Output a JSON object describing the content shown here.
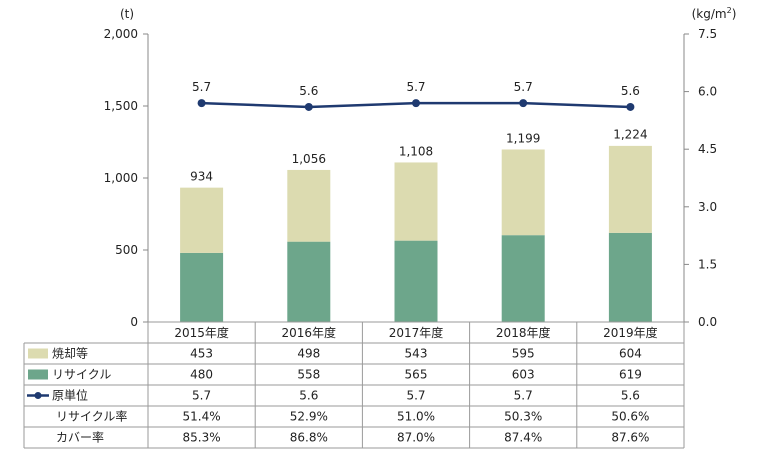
{
  "chart_data": {
    "type": "bar",
    "stacked": true,
    "left_axis": {
      "unit": "(t)",
      "range": [
        0,
        2000
      ],
      "ticks": [
        "0",
        "500",
        "1,000",
        "1,500",
        "2,000"
      ]
    },
    "right_axis": {
      "unit": "(kg/m",
      "unit_sup": "2",
      "unit_close": ")",
      "range": [
        0,
        7.5
      ],
      "ticks": [
        "0.0",
        "1.5",
        "3.0",
        "4.5",
        "6.0",
        "7.5"
      ]
    },
    "categories": [
      "2015年度",
      "2016年度",
      "2017年度",
      "2018年度",
      "2019年度"
    ],
    "totals": [
      934,
      1056,
      1108,
      1199,
      1224
    ],
    "total_labels": [
      "934",
      "1,056",
      "1,108",
      "1,199",
      "1,224"
    ],
    "series": [
      {
        "name": "焼却等",
        "values": [
          453,
          498,
          543,
          595,
          604
        ],
        "color": "#dcdbb0",
        "axis": "left"
      },
      {
        "name": "リサイクル",
        "values": [
          480,
          558,
          565,
          603,
          619
        ],
        "color": "#6da68b",
        "axis": "left"
      },
      {
        "name": "原単位",
        "values": [
          5.7,
          5.6,
          5.7,
          5.7,
          5.6
        ],
        "color": "#1f3a70",
        "axis": "right",
        "type": "line"
      }
    ],
    "table_rows": [
      {
        "name": "焼却等",
        "marker": "box",
        "color": "#dcdbb0",
        "values": [
          "453",
          "498",
          "543",
          "595",
          "604"
        ]
      },
      {
        "name": "リサイクル",
        "marker": "box",
        "color": "#6da68b",
        "values": [
          "480",
          "558",
          "565",
          "603",
          "619"
        ]
      },
      {
        "name": "原単位",
        "marker": "line",
        "color": "#1f3a70",
        "values": [
          "5.7",
          "5.6",
          "5.7",
          "5.7",
          "5.6"
        ]
      },
      {
        "name": "リサイクル率",
        "marker": "none",
        "values": [
          "51.4%",
          "52.9%",
          "51.0%",
          "50.3%",
          "50.6%"
        ]
      },
      {
        "name": "カバー率",
        "marker": "none",
        "values": [
          "85.3%",
          "86.8%",
          "87.0%",
          "87.4%",
          "87.6%"
        ]
      }
    ],
    "grid": false
  }
}
